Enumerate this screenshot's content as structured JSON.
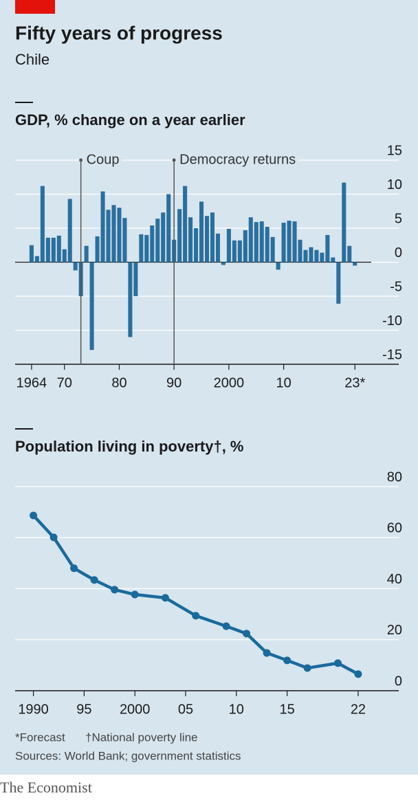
{
  "header": {
    "title": "Fifty years of progress",
    "subtitle": "Chile"
  },
  "chart_data": [
    {
      "type": "bar",
      "title": "GDP, % change on a year earlier",
      "x": [
        1964,
        1965,
        1966,
        1967,
        1968,
        1969,
        1970,
        1971,
        1972,
        1973,
        1974,
        1975,
        1976,
        1977,
        1978,
        1979,
        1980,
        1981,
        1982,
        1983,
        1984,
        1985,
        1986,
        1987,
        1988,
        1989,
        1990,
        1991,
        1992,
        1993,
        1994,
        1995,
        1996,
        1997,
        1998,
        1999,
        2000,
        2001,
        2002,
        2003,
        2004,
        2005,
        2006,
        2007,
        2008,
        2009,
        2010,
        2011,
        2012,
        2013,
        2014,
        2015,
        2016,
        2017,
        2018,
        2019,
        2020,
        2021,
        2022,
        2023
      ],
      "values": [
        2.5,
        0.9,
        11.2,
        3.6,
        3.6,
        3.9,
        1.9,
        9.3,
        -1.2,
        -5.0,
        2.4,
        -12.9,
        3.8,
        10.4,
        7.7,
        8.4,
        8.0,
        6.5,
        -11.0,
        -5.0,
        4.1,
        4.0,
        5.4,
        6.4,
        7.3,
        10.0,
        3.3,
        7.8,
        11.2,
        6.6,
        5.0,
        8.9,
        6.8,
        7.3,
        4.2,
        -0.4,
        4.9,
        3.2,
        3.2,
        4.7,
        6.6,
        5.9,
        6.0,
        5.2,
        3.7,
        -1.1,
        5.8,
        6.1,
        6.0,
        3.3,
        1.8,
        2.2,
        1.8,
        1.4,
        4.0,
        0.7,
        -6.1,
        11.7,
        2.4,
        -0.5
      ],
      "color": "#2a6f9e",
      "xlim": [
        1961,
        2031
      ],
      "xticks": [
        {
          "value": 1964,
          "label": "1964"
        },
        {
          "value": 1970,
          "label": "70"
        },
        {
          "value": 1980,
          "label": "80"
        },
        {
          "value": 1990,
          "label": "90"
        },
        {
          "value": 2000,
          "label": "2000"
        },
        {
          "value": 2010,
          "label": "10"
        },
        {
          "value": 2023,
          "label": "23*"
        }
      ],
      "ylim": [
        -15,
        15
      ],
      "yticks": [
        15,
        10,
        5,
        0,
        -5,
        -10,
        -15
      ],
      "grid": true,
      "annotations": [
        {
          "text": "Coup",
          "x": 1973
        },
        {
          "text": "Democracy returns",
          "x": 1990
        }
      ]
    },
    {
      "type": "line",
      "title": "Population living in poverty†, %",
      "x": [
        1990,
        1992,
        1994,
        1996,
        1998,
        2000,
        2003,
        2006,
        2009,
        2011,
        2013,
        2015,
        2017,
        2020,
        2022
      ],
      "values": [
        68.7,
        60.1,
        48.0,
        43.4,
        39.6,
        37.7,
        36.4,
        29.4,
        25.3,
        22.4,
        14.8,
        11.9,
        8.9,
        10.8,
        6.5
      ],
      "color": "#1a6a9c",
      "xlim": [
        1988.2,
        2026
      ],
      "xticks": [
        {
          "value": 1990,
          "label": "1990"
        },
        {
          "value": 1995,
          "label": "95"
        },
        {
          "value": 2000,
          "label": "2000"
        },
        {
          "value": 2005,
          "label": "05"
        },
        {
          "value": 2010,
          "label": "10"
        },
        {
          "value": 2015,
          "label": "15"
        },
        {
          "value": 2022,
          "label": "22"
        }
      ],
      "ylim": [
        0,
        80
      ],
      "yticks": [
        80,
        60,
        40,
        20,
        0
      ],
      "grid": true
    }
  ],
  "footer": {
    "notes": [
      "*Forecast",
      "†National poverty line"
    ],
    "source": "Sources: World Bank; government statistics",
    "brand": "The Economist"
  }
}
